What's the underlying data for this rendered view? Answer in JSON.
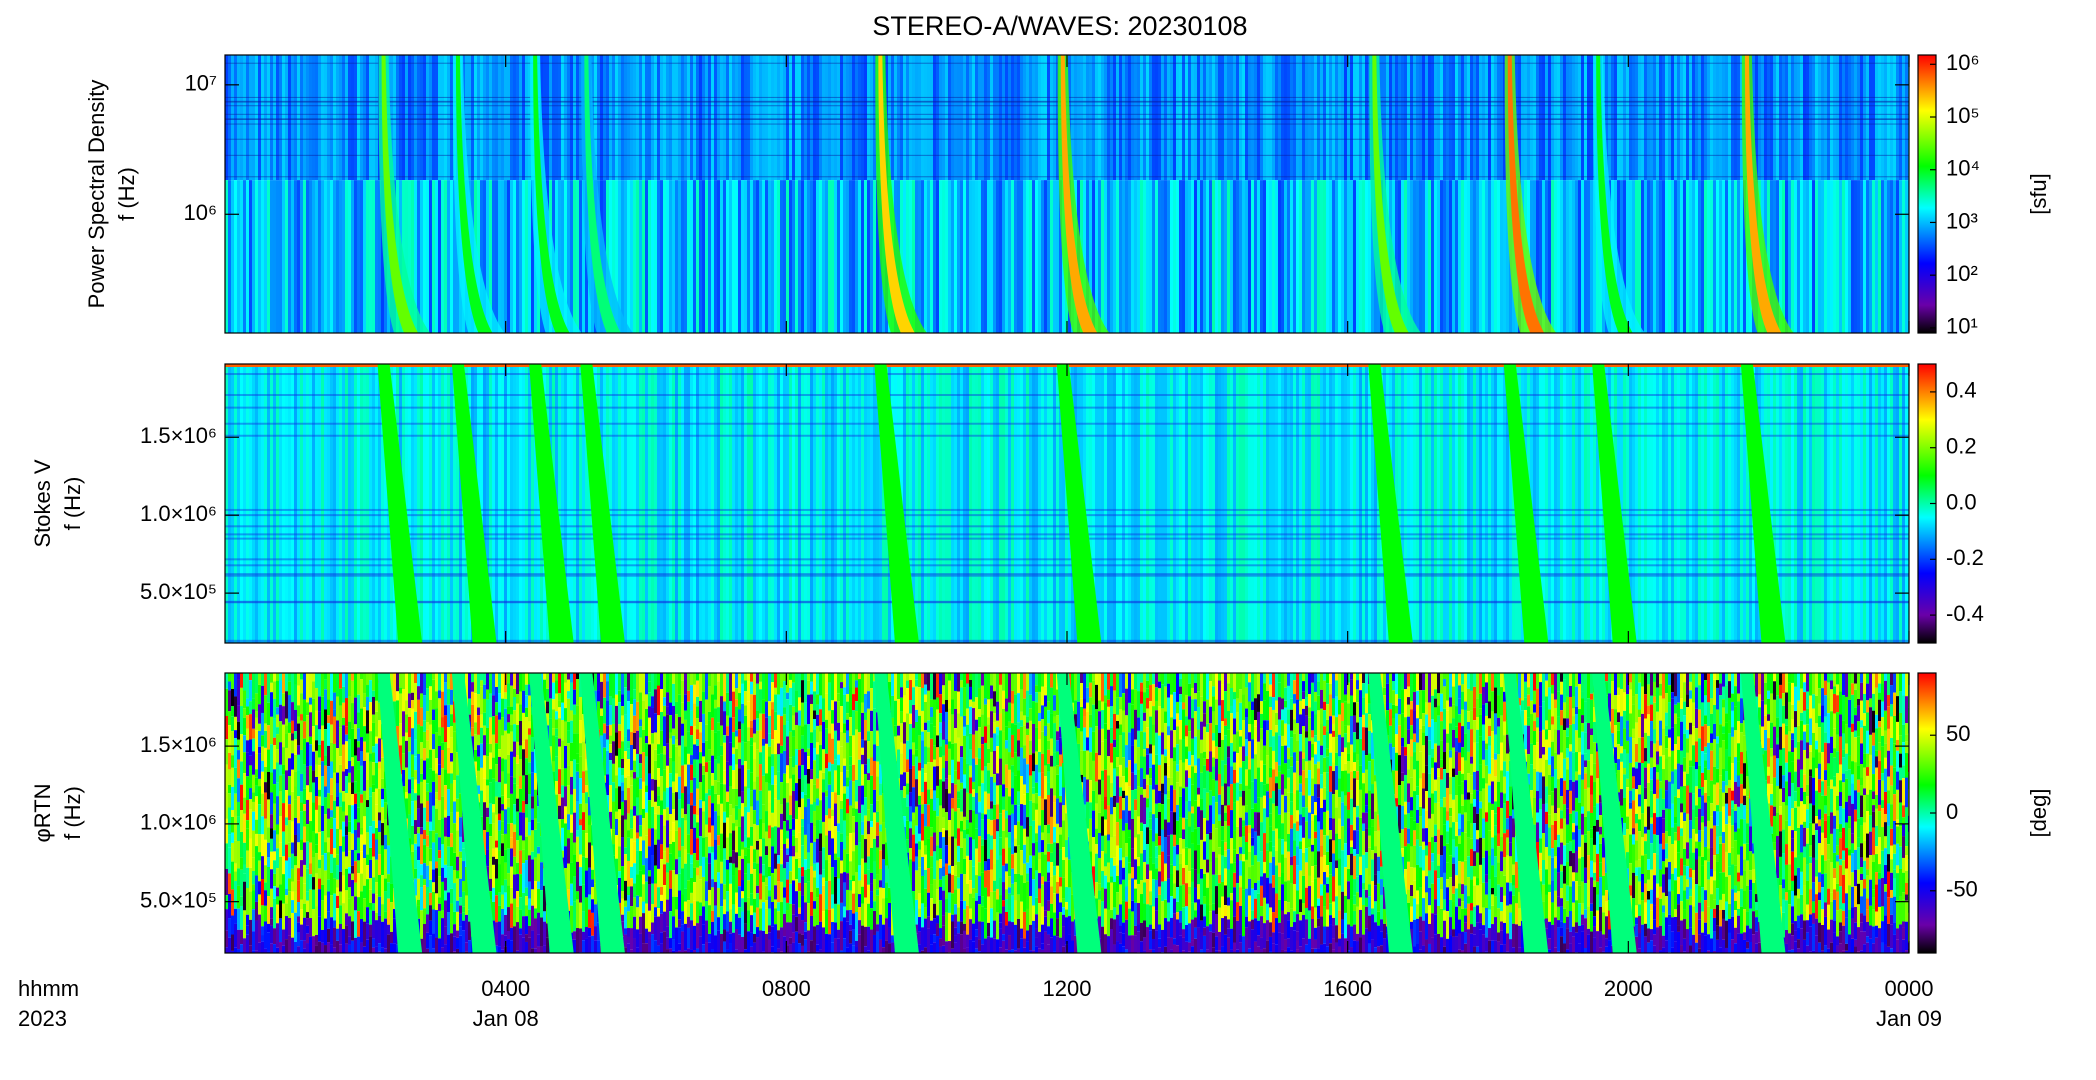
{
  "chart_data": [
    {
      "type": "spectrogram",
      "title": "STEREO-A/WAVES: 20230108",
      "ylabel": [
        "Power Spectral Density",
        "f (Hz)"
      ],
      "ylog": true,
      "xlim": [
        0,
        24
      ],
      "ylim": [
        121000,
        17000000
      ],
      "yticks": [
        {
          "value": 1000000,
          "label": "10⁶"
        },
        {
          "value": 10000000,
          "label": "10⁷"
        }
      ],
      "colorbar": {
        "log": true,
        "zlim": [
          8,
          1500000
        ],
        "label": "[sfu]",
        "ticks": [
          {
            "value": 10,
            "label": "10¹"
          },
          {
            "value": 100,
            "label": "10²"
          },
          {
            "value": 1000,
            "label": "10³"
          },
          {
            "value": 10000,
            "label": "10⁴"
          },
          {
            "value": 100000,
            "label": "10⁵"
          },
          {
            "value": 1000000,
            "label": "10⁶"
          }
        ]
      },
      "bursts": {
        "time": [
          2.26,
          3.32,
          4.42,
          5.15,
          9.34,
          11.94,
          16.38,
          18.31,
          19.57,
          21.69
        ],
        "values": [
          30000,
          10000,
          10000,
          5000,
          200000,
          300000,
          30000,
          500000,
          10000,
          300000
        ]
      }
    },
    {
      "type": "spectrogram",
      "ylabel": [
        "Stokes V",
        "f (Hz)"
      ],
      "ylog": false,
      "xlim": [
        0,
        24
      ],
      "ylim": [
        180000,
        1970000
      ],
      "yticks": [
        {
          "value": 500000,
          "label": "5.0×10⁵"
        },
        {
          "value": 1000000,
          "label": "1.0×10⁶"
        },
        {
          "value": 1500000,
          "label": "1.5×10⁶"
        }
      ],
      "colorbar": {
        "log": false,
        "zlim": [
          -0.5,
          0.5
        ],
        "ticks": [
          -0.4,
          -0.2,
          {
            "value": 0,
            "label": "0.0"
          },
          0.2,
          0.4
        ]
      },
      "bursts": {
        "time": [
          2.26,
          3.32,
          4.42,
          5.15,
          9.34,
          11.94,
          16.38,
          18.31,
          19.57,
          21.69
        ],
        "values": [
          0.1,
          0.1,
          0.1,
          0.1,
          0.1,
          0.1,
          0.1,
          0.1,
          0.1,
          0.1
        ]
      }
    },
    {
      "type": "spectrogram",
      "ylabel": [
        "φRTN",
        "f (Hz)"
      ],
      "ylog": false,
      "xlim": [
        0,
        24
      ],
      "ylim": [
        170000,
        1970000
      ],
      "yticks": [
        {
          "value": 500000,
          "label": "5.0×10⁵"
        },
        {
          "value": 1000000,
          "label": "1.0×10⁶"
        },
        {
          "value": 1500000,
          "label": "1.5×10⁶"
        }
      ],
      "colorbar": {
        "log": false,
        "zlim": [
          -90,
          90
        ],
        "label": "[deg]",
        "ticks": [
          -50,
          0,
          50
        ]
      },
      "bursts": {
        "time": [
          2.26,
          3.32,
          4.42,
          5.15,
          9.34,
          11.94,
          16.38,
          18.31,
          19.57,
          21.69
        ],
        "values": [
          5,
          5,
          5,
          5,
          5,
          5,
          5,
          5,
          5,
          5
        ]
      },
      "xlabel": "hhmm",
      "year": "2023",
      "xticks": [
        {
          "value": 4,
          "label": "0400"
        },
        {
          "value": 8,
          "label": "0800"
        },
        {
          "value": 12,
          "label": "1200"
        },
        {
          "value": 16,
          "label": "1600"
        },
        {
          "value": 20,
          "label": "2000"
        },
        {
          "value": 24,
          "label": "0000"
        }
      ],
      "xdates": [
        {
          "value": 4,
          "label": "Jan 08"
        },
        {
          "value": 24,
          "label": "Jan 09"
        }
      ]
    }
  ]
}
